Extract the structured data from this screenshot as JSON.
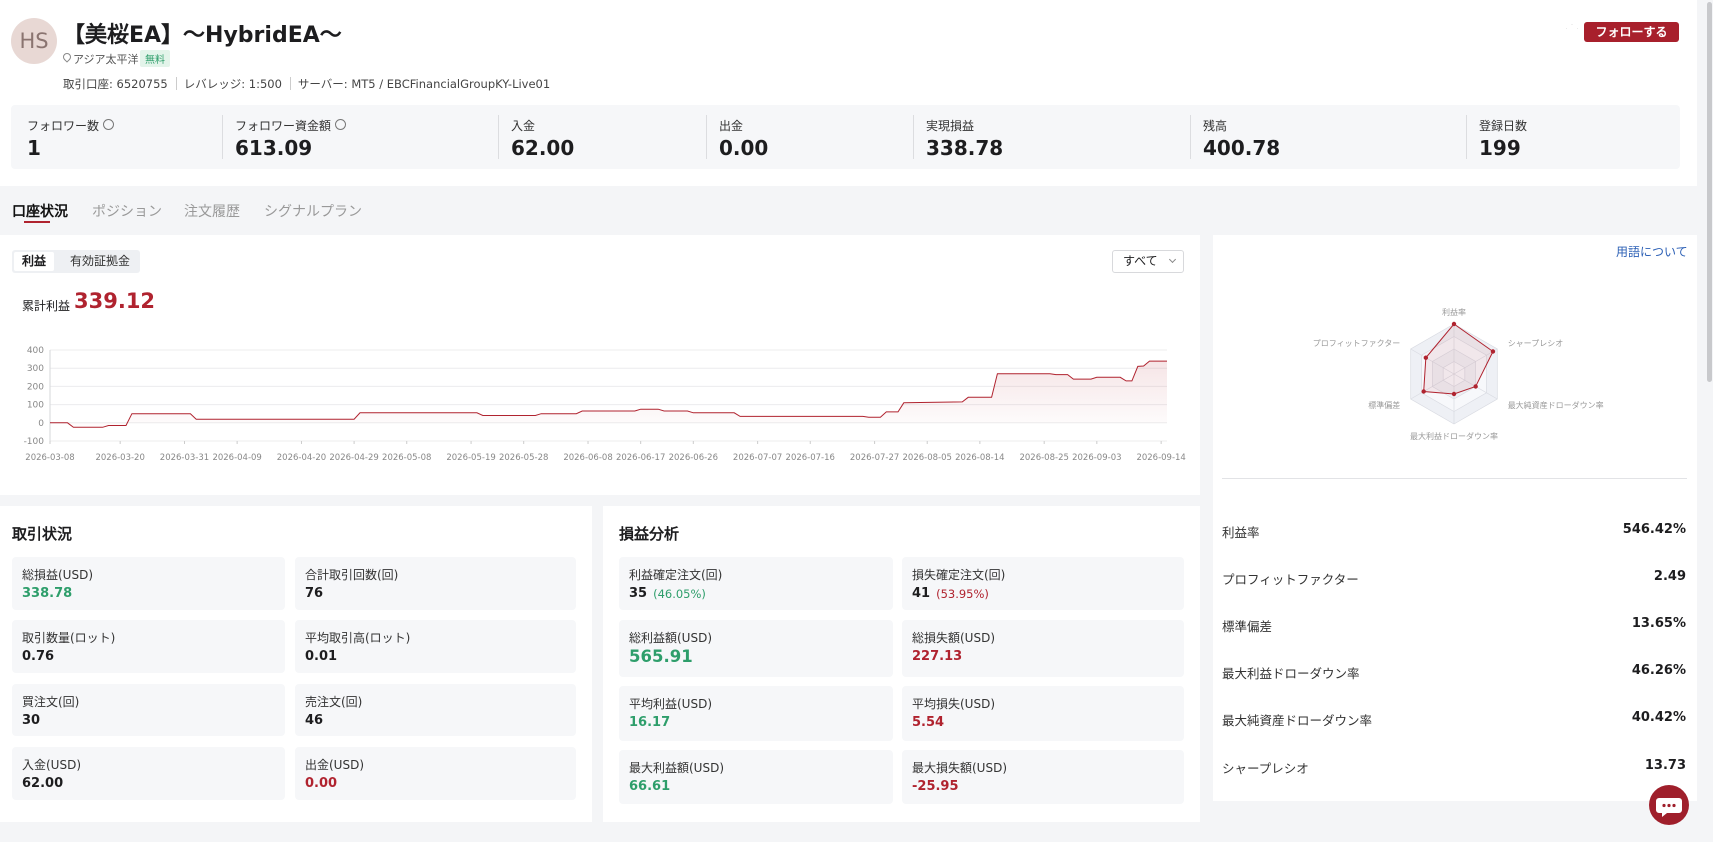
{
  "header": {
    "avatar": "HS",
    "title": "【美桜EA】～HybridEA～",
    "region": "アジア太平洋",
    "badge": "無料",
    "follow": "フォローする",
    "account": [
      "取引口座: 6520755",
      "レバレッジ: 1:500",
      "サーバー: MT5 / EBCFinancialGroupKY-Live01"
    ]
  },
  "stats": [
    {
      "label": "フォロワー数",
      "value": "1"
    },
    {
      "label": "フォロワー資金額",
      "value": "613.09"
    },
    {
      "label": "入金",
      "value": "62.00"
    },
    {
      "label": "出金",
      "value": "0.00"
    },
    {
      "label": "実現損益",
      "value": "338.78"
    },
    {
      "label": "残高",
      "value": "400.78"
    },
    {
      "label": "登録日数",
      "value": "199"
    }
  ],
  "tabs": [
    "口座状況",
    "ポジション",
    "注文履歴",
    "シグナルプラン"
  ],
  "profit_panel": {
    "toggles": [
      "利益",
      "有効証拠金"
    ],
    "range": "すべて",
    "total_label": "累計利益",
    "total": "339.12"
  },
  "chart_data": [
    {
      "type": "line",
      "color": "#b0232f",
      "grid": true,
      "x": [
        "2026-03-08",
        "2026-03-11",
        "2026-03-12",
        "2026-03-17",
        "2026-03-18",
        "2026-03-21",
        "2026-03-22",
        "2026-04-01",
        "2026-04-02",
        "2026-04-29",
        "2026-04-30",
        "2026-05-20",
        "2026-05-21",
        "2026-05-30",
        "2026-05-31",
        "2026-06-06",
        "2026-06-07",
        "2026-06-16",
        "2026-06-17",
        "2026-06-20",
        "2026-06-21",
        "2026-06-25",
        "2026-06-26",
        "2026-07-03",
        "2026-07-04",
        "2026-07-25",
        "2026-07-26",
        "2026-07-28",
        "2026-07-29",
        "2026-07-31",
        "2026-08-01",
        "2026-08-11",
        "2026-08-12",
        "2026-08-16",
        "2026-08-17",
        "2026-08-26",
        "2026-08-27",
        "2026-08-29",
        "2026-08-30",
        "2026-09-02",
        "2026-09-03",
        "2026-09-07",
        "2026-09-08",
        "2026-09-09",
        "2026-09-10",
        "2026-09-11",
        "2026-09-12",
        "2026-09-15"
      ],
      "values": [
        0,
        0,
        -25,
        -25,
        -15,
        -15,
        50,
        50,
        20,
        20,
        55,
        55,
        40,
        40,
        50,
        50,
        65,
        65,
        75,
        75,
        65,
        65,
        55,
        55,
        35,
        35,
        30,
        30,
        60,
        60,
        110,
        115,
        140,
        140,
        270,
        270,
        265,
        265,
        240,
        240,
        250,
        250,
        230,
        230,
        310,
        312,
        339,
        339
      ],
      "xlim": [
        "2026-03-08",
        "2026-09-15"
      ],
      "xticks": [
        "2026-03-08",
        "2026-03-20",
        "2026-03-31",
        "2026-04-09",
        "2026-04-20",
        "2026-04-29",
        "2026-05-08",
        "2026-05-19",
        "2026-05-28",
        "2026-06-08",
        "2026-06-17",
        "2026-06-26",
        "2026-07-07",
        "2026-07-16",
        "2026-07-27",
        "2026-08-05",
        "2026-08-14",
        "2026-08-25",
        "2026-09-03",
        "2026-09-14"
      ],
      "ylim": [
        -100,
        400
      ],
      "yticks": [
        -100,
        0,
        100,
        200,
        300,
        400
      ]
    },
    {
      "type": "radar",
      "color": "#b0232f",
      "categories": [
        "利益率",
        "シャープレシオ",
        "最大純資産ドローダウン率",
        "最大利益ドローダウン率",
        "標準偏差",
        "プロフィットファクター"
      ],
      "values": [
        100,
        90,
        50,
        40,
        70,
        65
      ],
      "ylim": [
        0,
        100
      ]
    }
  ],
  "terms_link": "用語について",
  "metrics": [
    {
      "label": "利益率",
      "value": "546.42%"
    },
    {
      "label": "プロフィットファクター",
      "value": "2.49"
    },
    {
      "label": "標準偏差",
      "value": "13.65%"
    },
    {
      "label": "最大利益ドローダウン率",
      "value": "46.26%"
    },
    {
      "label": "最大純資産ドローダウン率",
      "value": "40.42%"
    },
    {
      "label": "シャープレシオ",
      "value": "13.73"
    }
  ],
  "trading": {
    "title": "取引状況",
    "items": [
      {
        "label": "総損益(USD)",
        "value": "338.78",
        "color": "#2e9e6b"
      },
      {
        "label": "合計取引回数(回)",
        "value": "76"
      },
      {
        "label": "取引数量(ロット)",
        "value": "0.76"
      },
      {
        "label": "平均取引高(ロット)",
        "value": "0.01"
      },
      {
        "label": "買注文(回)",
        "value": "30"
      },
      {
        "label": "売注文(回)",
        "value": "46"
      },
      {
        "label": "入金(USD)",
        "value": "62.00"
      },
      {
        "label": "出金(USD)",
        "value": "0.00",
        "color": "#b0232f"
      }
    ]
  },
  "pnl": {
    "title": "損益分析",
    "items": [
      {
        "label": "利益確定注文(回)",
        "value": "35",
        "share": "(46.05%)",
        "color": "#2e9e6b"
      },
      {
        "label": "損失確定注文(回)",
        "value": "41",
        "share": "(53.95%)",
        "color": "#b0232f"
      },
      {
        "label": "総利益額(USD)",
        "value": "565.91",
        "color": "#2e9e6b"
      },
      {
        "label": "総損失額(USD)",
        "value": "227.13",
        "color": "#b0232f"
      },
      {
        "label": "平均利益(USD)",
        "value": "16.17",
        "color": "#2e9e6b"
      },
      {
        "label": "平均損失(USD)",
        "value": "5.54",
        "color": "#b0232f"
      },
      {
        "label": "最大利益額(USD)",
        "value": "66.61",
        "color": "#2e9e6b"
      },
      {
        "label": "最大損失額(USD)",
        "value": "-25.95",
        "color": "#b0232f"
      }
    ]
  }
}
